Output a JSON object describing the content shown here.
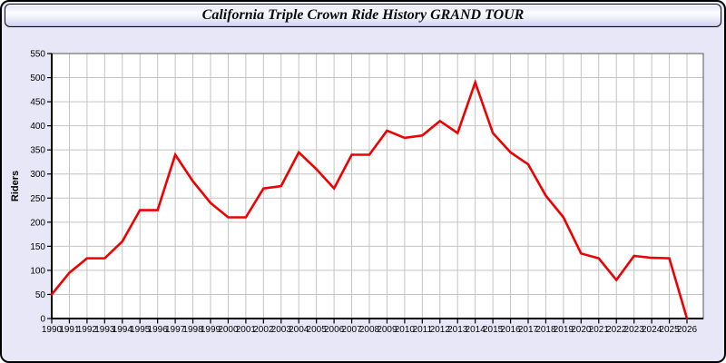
{
  "window": {
    "background_color": "#e7e7f7"
  },
  "chart_data": {
    "type": "line",
    "title": "California Triple Crown Ride History GRAND TOUR",
    "xlabel": "",
    "ylabel": "Riders",
    "ylim": [
      0,
      550
    ],
    "ytick_step": 50,
    "grid": true,
    "legend": "none",
    "line_color": "#ee0000",
    "plot_background": "#ffffff",
    "grid_color": "#c4c4c4",
    "x": [
      1990,
      1991,
      1992,
      1993,
      1994,
      1995,
      1996,
      1997,
      1998,
      1999,
      2000,
      2001,
      2002,
      2003,
      2004,
      2005,
      2006,
      2007,
      2008,
      2009,
      2010,
      2011,
      2012,
      2013,
      2014,
      2015,
      2016,
      2017,
      2018,
      2019,
      2020,
      2021,
      2022,
      2023,
      2024,
      2025,
      2026
    ],
    "values": [
      50,
      95,
      125,
      125,
      160,
      225,
      225,
      340,
      285,
      240,
      210,
      210,
      270,
      275,
      345,
      310,
      270,
      340,
      340,
      390,
      375,
      380,
      410,
      385,
      490,
      385,
      345,
      320,
      255,
      210,
      135,
      125,
      80,
      130,
      126,
      125,
      0
    ]
  }
}
